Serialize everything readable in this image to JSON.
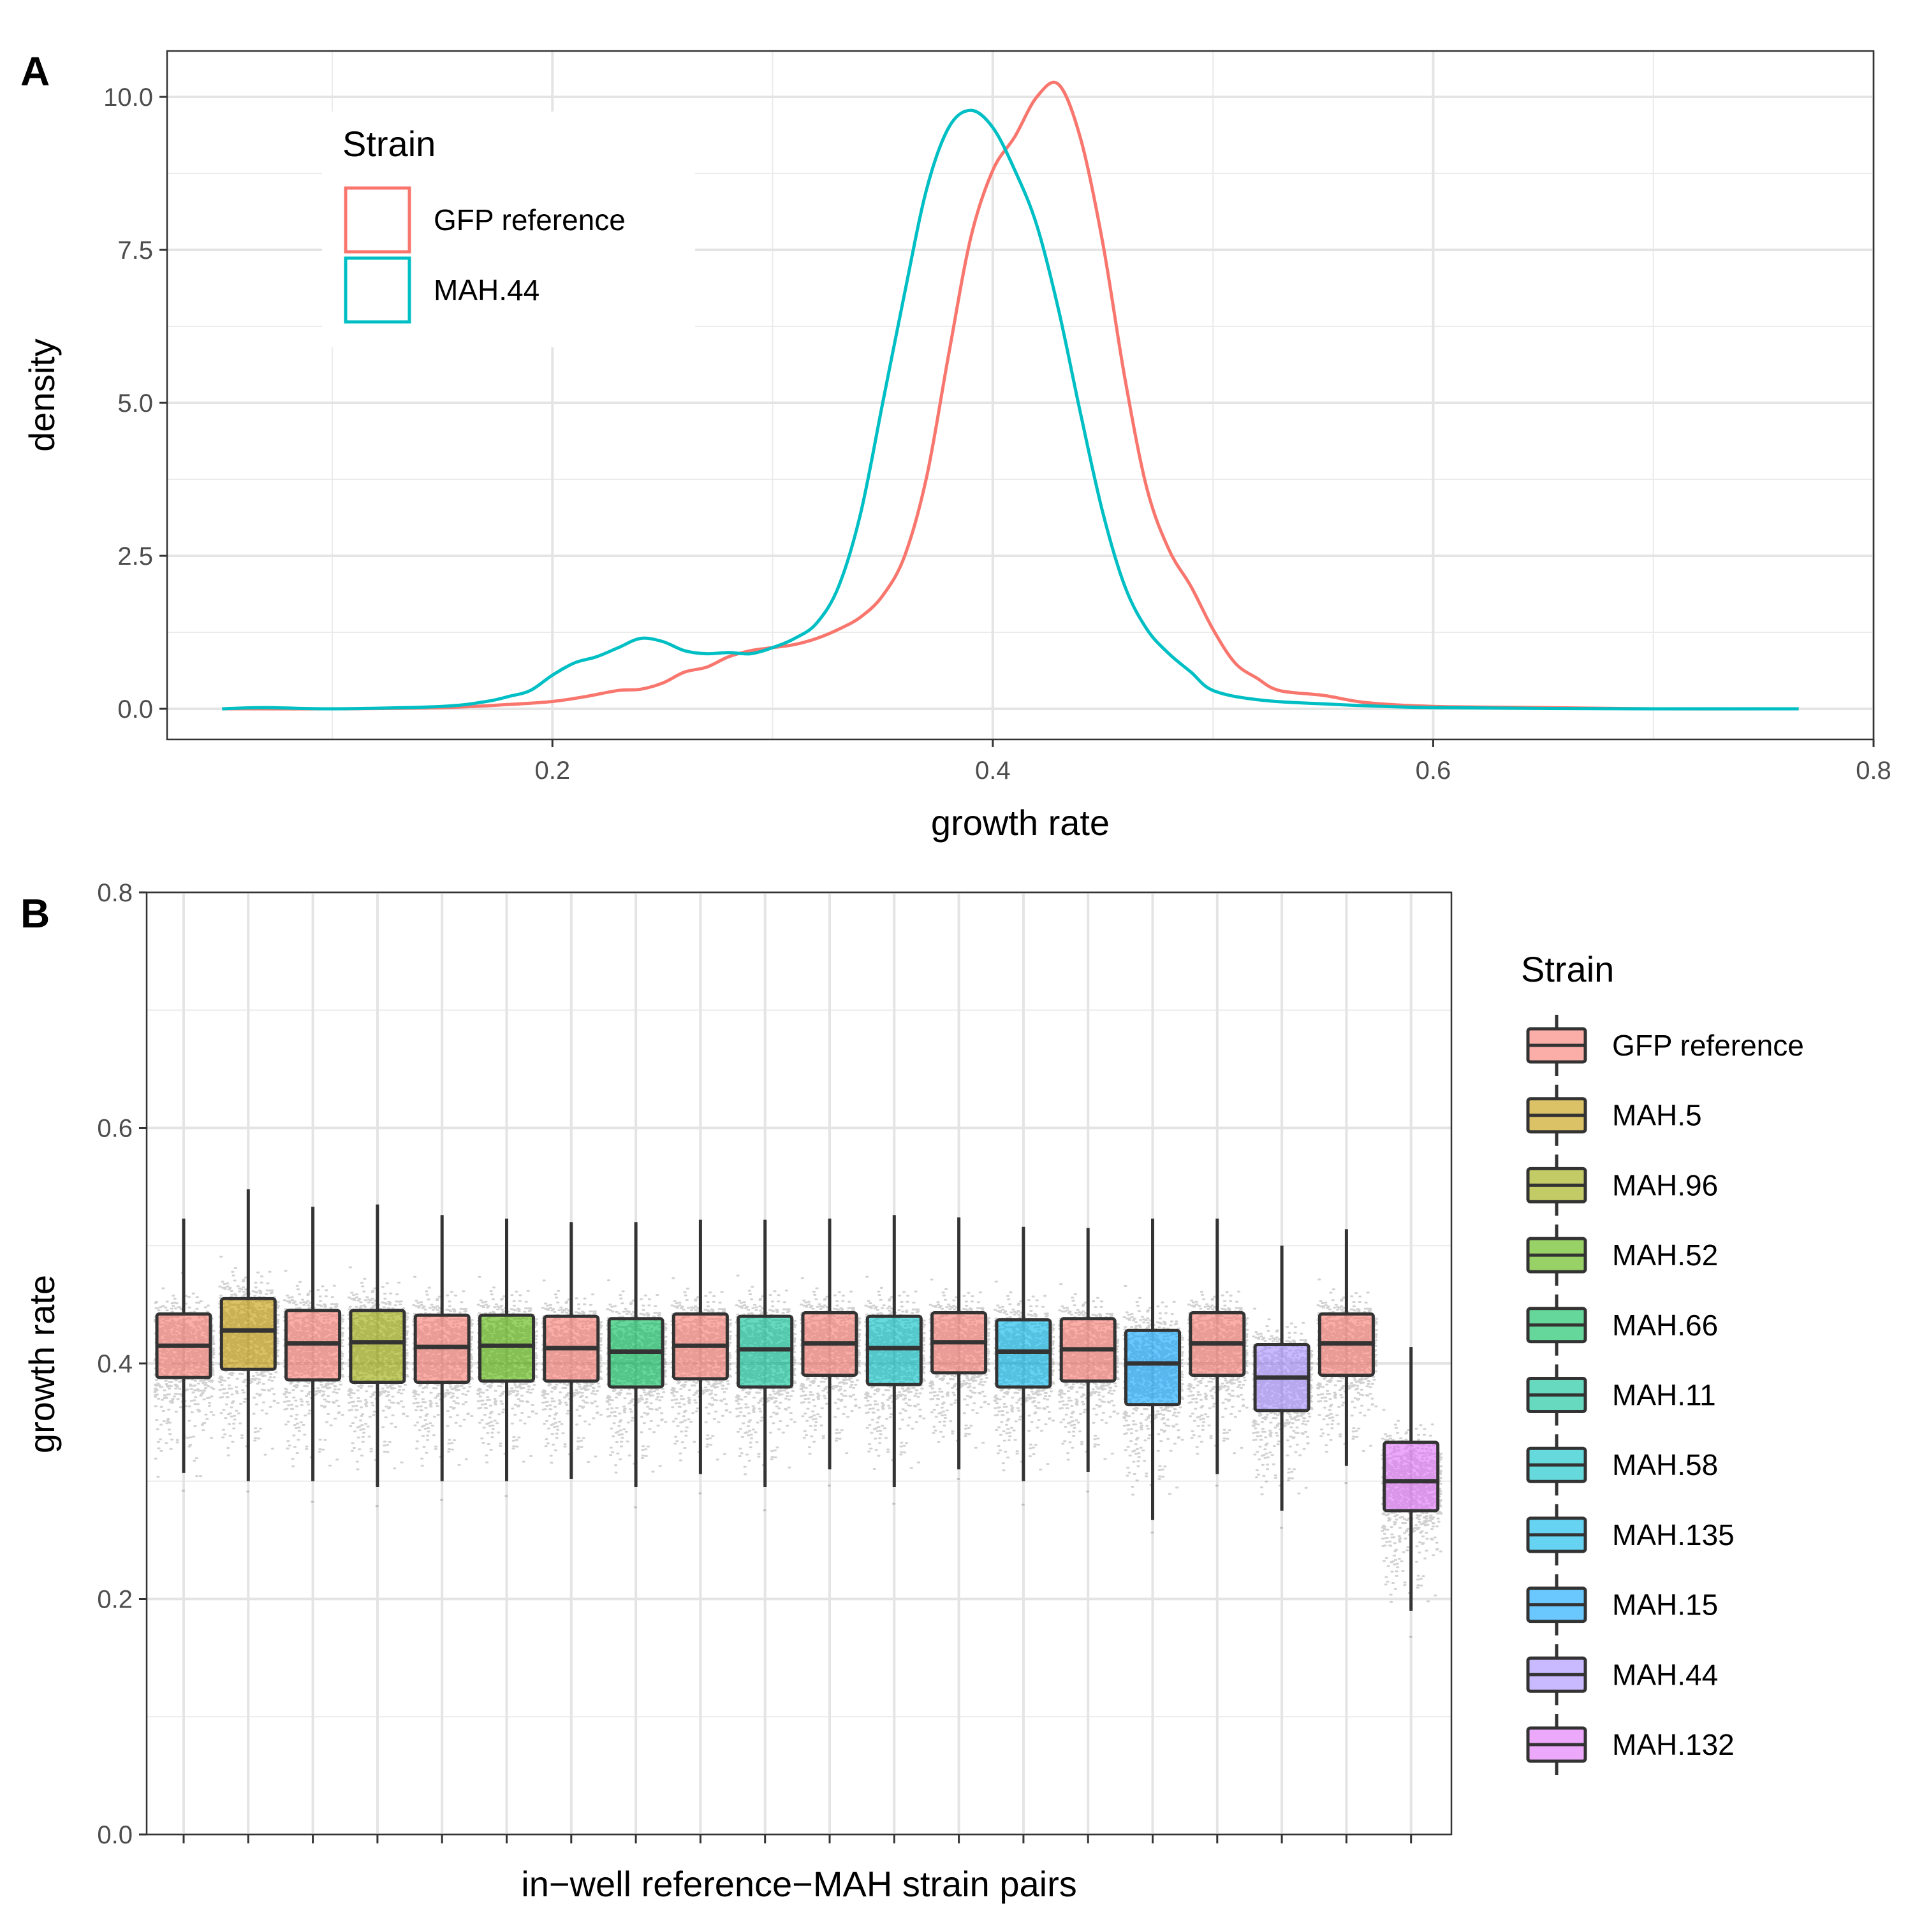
{
  "colors": {
    "gfp_reference": "#F8766D",
    "mah44_line": "#00BFC4",
    "box_fills": [
      "#F8766D",
      "#C49A00",
      "#99A800",
      "#53B400",
      "#00BC56",
      "#00C094",
      "#00BFC4",
      "#00B6EB",
      "#06A4FF",
      "#A58AFF",
      "#DF70F8",
      "#FB61D7"
    ]
  },
  "chart_data": [
    {
      "panel": "A",
      "type": "line",
      "xlabel": "growth rate",
      "ylabel": "density",
      "xlim": [
        0.025,
        0.8
      ],
      "ylim": [
        -0.5,
        10.75
      ],
      "x_ticks": [
        0.2,
        0.4,
        0.6,
        0.8
      ],
      "x_tick_labels": [
        "0.2",
        "0.4",
        "0.6",
        "0.8"
      ],
      "y_ticks": [
        0,
        2.5,
        5,
        7.5,
        10
      ],
      "y_tick_labels": [
        "0.0",
        "2.5",
        "5.0",
        "7.5",
        "10.0"
      ],
      "grid": true,
      "legend": {
        "title": "Strain",
        "position": "top-left inside"
      },
      "series": [
        {
          "name": "GFP reference",
          "color": "#F8766D",
          "points": [
            [
              0.05,
              0
            ],
            [
              0.1,
              0
            ],
            [
              0.15,
              0.02
            ],
            [
              0.18,
              0.07
            ],
            [
              0.2,
              0.12
            ],
            [
              0.215,
              0.2
            ],
            [
              0.23,
              0.3
            ],
            [
              0.24,
              0.32
            ],
            [
              0.25,
              0.42
            ],
            [
              0.26,
              0.6
            ],
            [
              0.27,
              0.68
            ],
            [
              0.28,
              0.85
            ],
            [
              0.29,
              0.95
            ],
            [
              0.3,
              1.0
            ],
            [
              0.31,
              1.05
            ],
            [
              0.32,
              1.15
            ],
            [
              0.33,
              1.3
            ],
            [
              0.34,
              1.5
            ],
            [
              0.35,
              1.85
            ],
            [
              0.36,
              2.5
            ],
            [
              0.37,
              3.8
            ],
            [
              0.38,
              5.8
            ],
            [
              0.39,
              7.7
            ],
            [
              0.4,
              8.8
            ],
            [
              0.41,
              9.35
            ],
            [
              0.42,
              10.0
            ],
            [
              0.43,
              10.2
            ],
            [
              0.44,
              9.3
            ],
            [
              0.45,
              7.6
            ],
            [
              0.46,
              5.4
            ],
            [
              0.47,
              3.6
            ],
            [
              0.48,
              2.6
            ],
            [
              0.49,
              2.0
            ],
            [
              0.5,
              1.3
            ],
            [
              0.51,
              0.75
            ],
            [
              0.52,
              0.5
            ],
            [
              0.53,
              0.3
            ],
            [
              0.55,
              0.22
            ],
            [
              0.57,
              0.1
            ],
            [
              0.6,
              0.04
            ],
            [
              0.65,
              0.02
            ],
            [
              0.7,
              0
            ],
            [
              0.766,
              0
            ]
          ]
        },
        {
          "name": "MAH.44",
          "color": "#00BFC4",
          "points": [
            [
              0.05,
              0
            ],
            [
              0.07,
              0.02
            ],
            [
              0.1,
              0
            ],
            [
              0.15,
              0.04
            ],
            [
              0.17,
              0.12
            ],
            [
              0.18,
              0.2
            ],
            [
              0.19,
              0.3
            ],
            [
              0.2,
              0.55
            ],
            [
              0.21,
              0.75
            ],
            [
              0.22,
              0.85
            ],
            [
              0.23,
              1.0
            ],
            [
              0.24,
              1.15
            ],
            [
              0.25,
              1.1
            ],
            [
              0.26,
              0.95
            ],
            [
              0.27,
              0.9
            ],
            [
              0.28,
              0.92
            ],
            [
              0.29,
              0.9
            ],
            [
              0.3,
              1.0
            ],
            [
              0.31,
              1.15
            ],
            [
              0.32,
              1.4
            ],
            [
              0.33,
              2.0
            ],
            [
              0.34,
              3.2
            ],
            [
              0.35,
              5.0
            ],
            [
              0.36,
              6.8
            ],
            [
              0.37,
              8.5
            ],
            [
              0.38,
              9.5
            ],
            [
              0.39,
              9.78
            ],
            [
              0.4,
              9.5
            ],
            [
              0.41,
              8.8
            ],
            [
              0.42,
              7.9
            ],
            [
              0.43,
              6.5
            ],
            [
              0.44,
              4.8
            ],
            [
              0.45,
              3.2
            ],
            [
              0.46,
              2.0
            ],
            [
              0.47,
              1.3
            ],
            [
              0.48,
              0.9
            ],
            [
              0.49,
              0.6
            ],
            [
              0.5,
              0.3
            ],
            [
              0.52,
              0.15
            ],
            [
              0.55,
              0.08
            ],
            [
              0.6,
              0.02
            ],
            [
              0.7,
              0
            ],
            [
              0.766,
              0
            ]
          ]
        }
      ]
    },
    {
      "panel": "B",
      "type": "box",
      "xlabel": "in−well reference−MAH strain pairs",
      "ylabel": "growth rate",
      "ylim": [
        0.0,
        0.8
      ],
      "y_ticks": [
        0.0,
        0.2,
        0.4,
        0.6,
        0.8
      ],
      "y_tick_labels": [
        "0.0",
        "0.2",
        "0.4",
        "0.6",
        "0.8"
      ],
      "grid": true,
      "legend": {
        "title": "Strain",
        "position": "right",
        "entries": [
          "GFP reference",
          "MAH.5",
          "MAH.96",
          "MAH.52",
          "MAH.66",
          "MAH.11",
          "MAH.58",
          "MAH.135",
          "MAH.15",
          "MAH.44",
          "MAH.132"
        ]
      },
      "boxes": [
        {
          "strain": "GFP reference",
          "whisker_low": 0.307,
          "q1": 0.388,
          "median": 0.415,
          "q3": 0.442,
          "whisker_high": 0.523
        },
        {
          "strain": "MAH.5",
          "whisker_low": 0.3,
          "q1": 0.395,
          "median": 0.428,
          "q3": 0.455,
          "whisker_high": 0.548
        },
        {
          "strain": "GFP reference",
          "whisker_low": 0.3,
          "q1": 0.386,
          "median": 0.417,
          "q3": 0.445,
          "whisker_high": 0.533
        },
        {
          "strain": "MAH.96",
          "whisker_low": 0.295,
          "q1": 0.384,
          "median": 0.418,
          "q3": 0.445,
          "whisker_high": 0.535
        },
        {
          "strain": "GFP reference",
          "whisker_low": 0.3,
          "q1": 0.384,
          "median": 0.414,
          "q3": 0.441,
          "whisker_high": 0.526
        },
        {
          "strain": "MAH.52",
          "whisker_low": 0.3,
          "q1": 0.385,
          "median": 0.415,
          "q3": 0.441,
          "whisker_high": 0.523
        },
        {
          "strain": "GFP reference",
          "whisker_low": 0.302,
          "q1": 0.385,
          "median": 0.413,
          "q3": 0.44,
          "whisker_high": 0.52
        },
        {
          "strain": "MAH.66",
          "whisker_low": 0.295,
          "q1": 0.38,
          "median": 0.41,
          "q3": 0.438,
          "whisker_high": 0.52
        },
        {
          "strain": "GFP reference",
          "whisker_low": 0.306,
          "q1": 0.387,
          "median": 0.415,
          "q3": 0.442,
          "whisker_high": 0.522
        },
        {
          "strain": "MAH.11",
          "whisker_low": 0.295,
          "q1": 0.38,
          "median": 0.412,
          "q3": 0.44,
          "whisker_high": 0.522
        },
        {
          "strain": "GFP reference",
          "whisker_low": 0.31,
          "q1": 0.39,
          "median": 0.417,
          "q3": 0.443,
          "whisker_high": 0.523
        },
        {
          "strain": "MAH.58",
          "whisker_low": 0.295,
          "q1": 0.382,
          "median": 0.413,
          "q3": 0.44,
          "whisker_high": 0.526
        },
        {
          "strain": "GFP reference",
          "whisker_low": 0.31,
          "q1": 0.392,
          "median": 0.418,
          "q3": 0.443,
          "whisker_high": 0.524
        },
        {
          "strain": "MAH.135",
          "whisker_low": 0.3,
          "q1": 0.38,
          "median": 0.41,
          "q3": 0.437,
          "whisker_high": 0.516
        },
        {
          "strain": "GFP reference",
          "whisker_low": 0.308,
          "q1": 0.385,
          "median": 0.412,
          "q3": 0.438,
          "whisker_high": 0.515
        },
        {
          "strain": "MAH.15",
          "whisker_low": 0.267,
          "q1": 0.365,
          "median": 0.4,
          "q3": 0.428,
          "whisker_high": 0.523
        },
        {
          "strain": "GFP reference",
          "whisker_low": 0.306,
          "q1": 0.39,
          "median": 0.417,
          "q3": 0.443,
          "whisker_high": 0.523
        },
        {
          "strain": "MAH.44",
          "whisker_low": 0.275,
          "q1": 0.36,
          "median": 0.388,
          "q3": 0.416,
          "whisker_high": 0.5
        },
        {
          "strain": "GFP reference",
          "whisker_low": 0.313,
          "q1": 0.39,
          "median": 0.417,
          "q3": 0.442,
          "whisker_high": 0.514
        },
        {
          "strain": "MAH.132",
          "whisker_low": 0.19,
          "q1": 0.275,
          "median": 0.3,
          "q3": 0.333,
          "whisker_high": 0.414
        }
      ]
    }
  ],
  "panels": {
    "a": {
      "letter": "A",
      "legend_title": "Strain",
      "legend_entries": [
        "GFP reference",
        "MAH.44"
      ]
    },
    "b": {
      "letter": "B",
      "legend_title": "Strain",
      "legend_entries": [
        "GFP reference",
        "MAH.5",
        "MAH.96",
        "MAH.52",
        "MAH.66",
        "MAH.11",
        "MAH.58",
        "MAH.135",
        "MAH.15",
        "MAH.44",
        "MAH.132"
      ]
    }
  }
}
